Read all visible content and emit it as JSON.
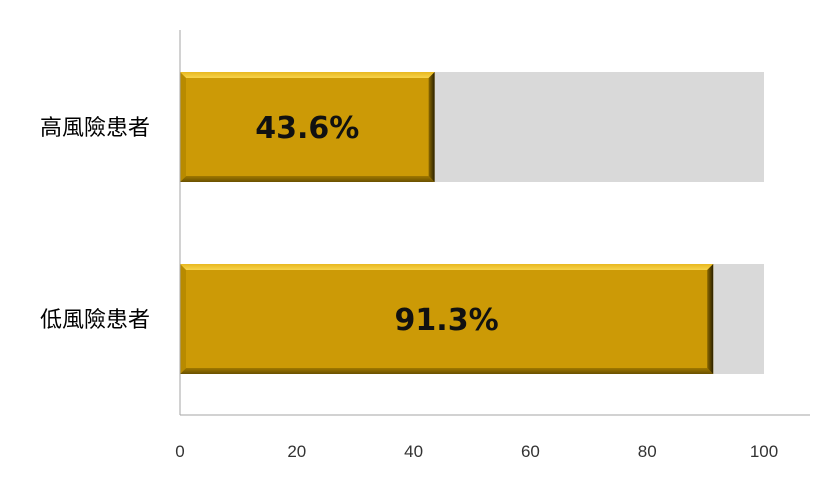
{
  "chart_data": {
    "type": "bar",
    "orientation": "horizontal",
    "stacked_background_to": 100,
    "categories": [
      "高風險患者",
      "低風險患者"
    ],
    "values": [
      43.6,
      91.3
    ],
    "data_labels": [
      "43.6%",
      "91.3%"
    ],
    "xlim": [
      0,
      100
    ],
    "xticks": [
      0,
      20,
      40,
      60,
      80,
      100
    ],
    "xtick_labels": [
      "0",
      "20",
      "40",
      "60",
      "80",
      "100"
    ],
    "grid": false,
    "legend": "none",
    "colors": {
      "bar": "#CC9A06",
      "background_bar": "#D9D9D9",
      "axis": "#A6A6A6"
    }
  }
}
